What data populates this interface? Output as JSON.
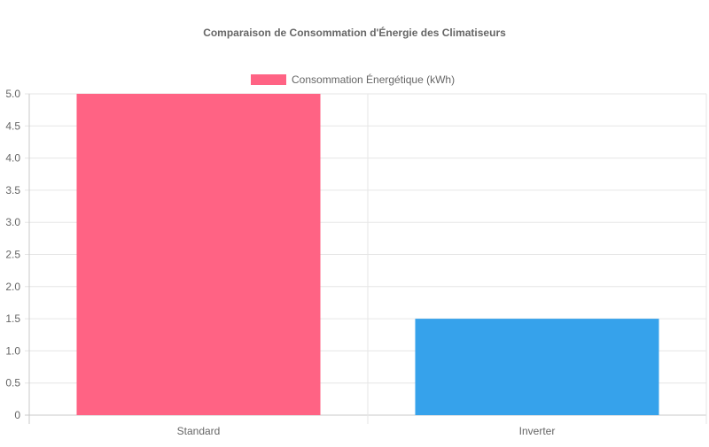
{
  "chart_data": {
    "type": "bar",
    "title": "Comparaison de Consommation d'Énergie des Climatiseurs",
    "categories": [
      "Standard",
      "Inverter"
    ],
    "series": [
      {
        "name": "Consommation Énergétique (kWh)",
        "values": [
          5,
          1.5
        ],
        "colors": [
          "#ff6384",
          "#36a2eb"
        ]
      }
    ],
    "ylim": [
      0,
      5
    ],
    "yticks": [
      "0",
      "0.5",
      "1.0",
      "1.5",
      "2.0",
      "2.5",
      "3.0",
      "3.5",
      "4.0",
      "4.5",
      "5.0"
    ],
    "grid": true,
    "legend_position": "top"
  }
}
